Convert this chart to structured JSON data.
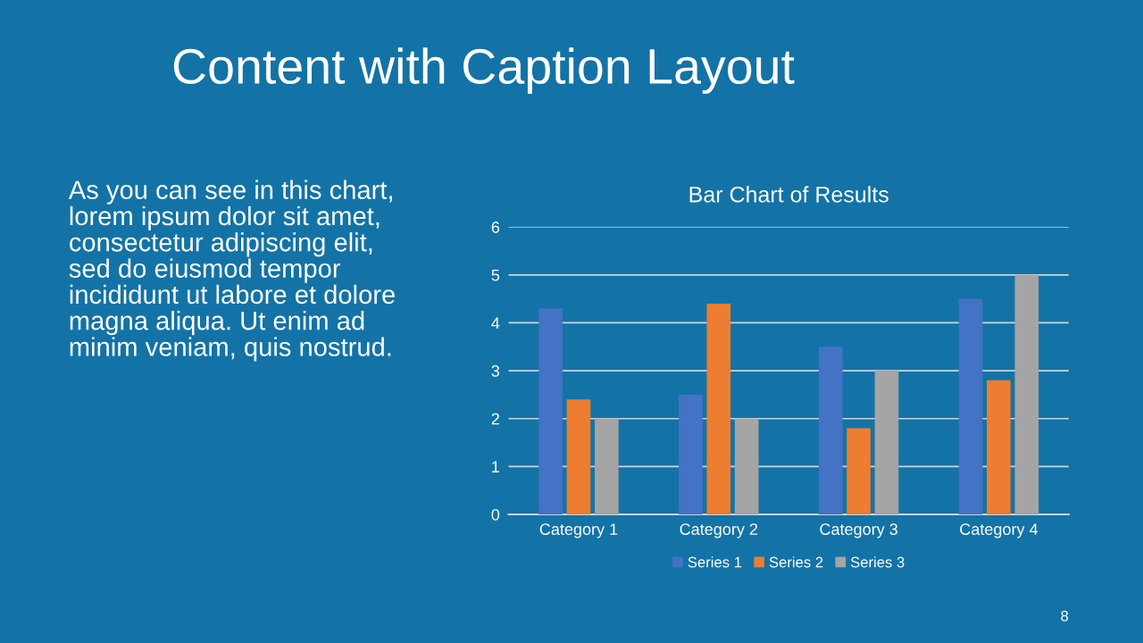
{
  "chart_data": {
    "type": "bar",
    "title": "Bar Chart of Results",
    "annotations": [
      "Content with Caption Layout",
      "As you can see in this chart,\nlorem ipsum dolor sit amet,\nconsectetur adipiscing elit,\nsed do eiusmod tempor\nincididunt ut labore et dolore\nmagna aliqua. Ut enim ad\nminim veniam, quis nostrud.",
      "8"
    ],
    "categories": [
      "Category 1",
      "Category 2",
      "Category 3",
      "Category 4"
    ],
    "series": [
      {
        "name": "Series 1",
        "color": "#4472c4",
        "values": [
          4.3,
          2.5,
          3.5,
          4.5
        ]
      },
      {
        "name": "Series 2",
        "color": "#ed7d31",
        "values": [
          2.4,
          4.4,
          1.8,
          2.8
        ]
      },
      {
        "name": "Series 3",
        "color": "#a5a5a5",
        "values": [
          2,
          2,
          3,
          5
        ]
      }
    ],
    "ylim": [
      0,
      6
    ],
    "yticks": [
      0,
      1,
      2,
      3,
      4,
      5,
      6
    ],
    "grid": "y",
    "legend": "bottom"
  }
}
